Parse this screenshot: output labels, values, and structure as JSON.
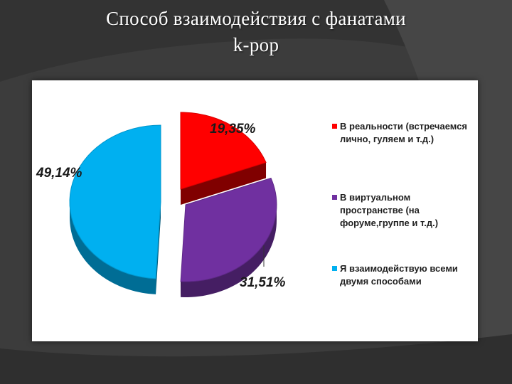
{
  "slide": {
    "title_line1": "Способ взаимодействия с фанатами",
    "title_line2": "k-pop"
  },
  "chart_data": {
    "type": "pie",
    "title": "",
    "categories": [
      "В реальности (встречаемся лично, гуляем и т.д.)",
      "В виртуальном пространстве (на форуме,группе и т.д.)",
      "Я взаимодействую всеми двумя способами"
    ],
    "values": [
      19.35,
      31.51,
      49.14
    ],
    "data_labels": [
      "19,35%",
      "31,51%",
      "49,14%"
    ],
    "colors": [
      "#ff0000",
      "#7030a0",
      "#00b0f0"
    ],
    "legend_position": "right",
    "style": "3d-exploded"
  }
}
